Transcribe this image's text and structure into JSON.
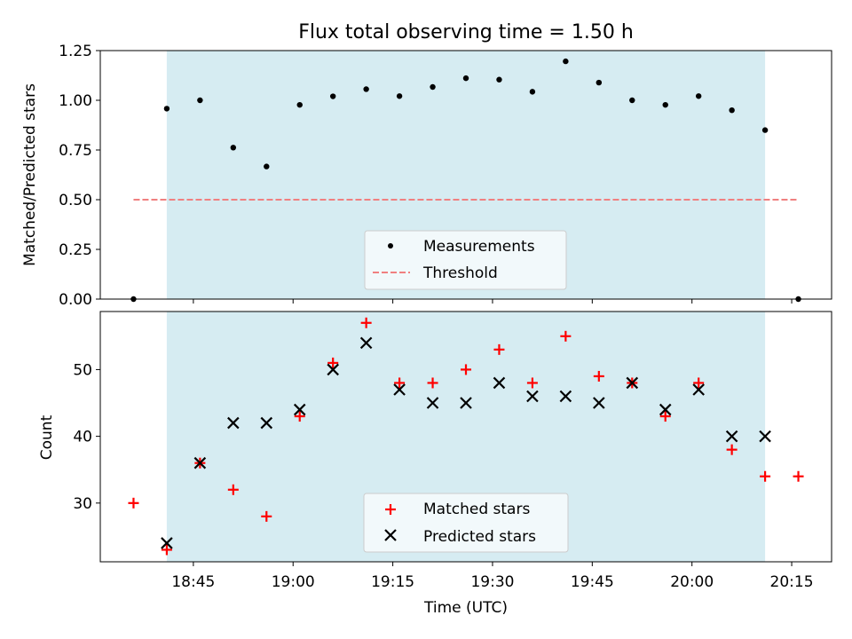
{
  "chart_data": [
    {
      "type": "scatter",
      "title": "Flux total observing time = 1.50 h",
      "ylabel": "Matched/Predicted stars",
      "ylim": [
        0,
        1.25
      ],
      "yticks": [
        "0.00",
        "0.25",
        "0.50",
        "0.75",
        "1.00",
        "1.25"
      ],
      "ytick_values": [
        0,
        0.25,
        0.5,
        0.75,
        1.0,
        1.25
      ],
      "shaded_span": [
        "18:41",
        "20:11"
      ],
      "shade_color": "#d4ebf1",
      "legend_position": "lower-center",
      "series": [
        {
          "name": "Measurements",
          "marker": "dot",
          "color": "#000000",
          "x": [
            "18:36",
            "18:41",
            "18:46",
            "18:51",
            "18:56",
            "19:01",
            "19:06",
            "19:11",
            "19:16",
            "19:21",
            "19:26",
            "19:31",
            "19:36",
            "19:41",
            "19:46",
            "19:51",
            "19:56",
            "20:01",
            "20:06",
            "20:11",
            "20:16"
          ],
          "y": [
            0,
            0.958,
            1.0,
            0.762,
            0.667,
            0.977,
            1.02,
            1.056,
            1.021,
            1.067,
            1.111,
            1.104,
            1.043,
            1.196,
            1.089,
            1.0,
            0.977,
            1.021,
            0.95,
            0.85,
            0
          ]
        },
        {
          "name": "Threshold",
          "marker": "dashed-line",
          "color": "#f08080",
          "x": [
            "18:36",
            "20:16"
          ],
          "y": [
            0.5,
            0.5
          ]
        }
      ]
    },
    {
      "type": "scatter",
      "xlabel": "Time (UTC)",
      "ylabel": "Count",
      "ylim": [
        21.2,
        58.7
      ],
      "yticks": [
        "30",
        "40",
        "50"
      ],
      "ytick_values": [
        30,
        40,
        50
      ],
      "xticks": [
        "18:45",
        "19:00",
        "19:15",
        "19:30",
        "19:45",
        "20:00",
        "20:15"
      ],
      "shaded_span": [
        "18:41",
        "20:11"
      ],
      "legend_position": "lower-center",
      "series": [
        {
          "name": "Matched stars",
          "marker": "plus",
          "color": "#ff0000",
          "x": [
            "18:36",
            "18:41",
            "18:46",
            "18:51",
            "18:56",
            "19:01",
            "19:06",
            "19:11",
            "19:16",
            "19:21",
            "19:26",
            "19:31",
            "19:36",
            "19:41",
            "19:46",
            "19:51",
            "19:56",
            "20:01",
            "20:06",
            "20:11",
            "20:16"
          ],
          "y": [
            30,
            23,
            36,
            32,
            28,
            43,
            51,
            57,
            48,
            48,
            50,
            53,
            48,
            55,
            49,
            48,
            43,
            48,
            38,
            34,
            34
          ]
        },
        {
          "name": "Predicted stars",
          "marker": "x",
          "color": "#000000",
          "x": [
            "18:41",
            "18:46",
            "18:51",
            "18:56",
            "19:01",
            "19:06",
            "19:11",
            "19:16",
            "19:21",
            "19:26",
            "19:31",
            "19:36",
            "19:41",
            "19:46",
            "19:51",
            "19:56",
            "20:01",
            "20:06",
            "20:11"
          ],
          "y": [
            24,
            36,
            42,
            42,
            44,
            50,
            54,
            47,
            45,
            45,
            48,
            46,
            46,
            45,
            48,
            44,
            47,
            40,
            40
          ]
        }
      ]
    }
  ]
}
